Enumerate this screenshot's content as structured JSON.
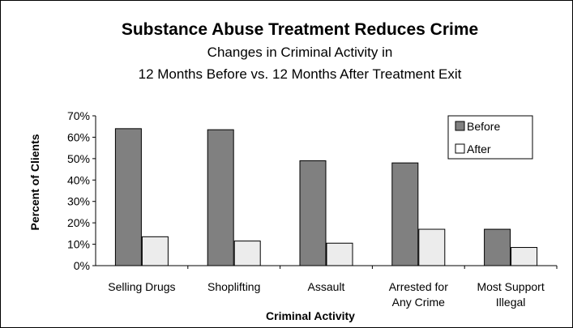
{
  "chart_data": {
    "type": "bar",
    "title": "Substance Abuse Treatment Reduces Crime",
    "subtitle_lines": [
      "Changes in Criminal Activity in",
      "12 Months Before vs. 12 Months After Treatment Exit"
    ],
    "xlabel": "Criminal Activity",
    "ylabel": "Percent of Clients",
    "ylim": [
      0,
      70
    ],
    "yticks": [
      "0%",
      "10%",
      "20%",
      "30%",
      "40%",
      "50%",
      "60%",
      "70%"
    ],
    "categories": [
      [
        "Selling Drugs"
      ],
      [
        "Shoplifting"
      ],
      [
        "Assault"
      ],
      [
        "Arrested for",
        "Any Crime"
      ],
      [
        "Most Support",
        "Illegal"
      ]
    ],
    "series": [
      {
        "name": "Before",
        "color": "#808080",
        "values": [
          64,
          63.5,
          49,
          48,
          17
        ]
      },
      {
        "name": "After",
        "color": "#f2f2f2",
        "values": [
          13.5,
          11.5,
          10.5,
          17,
          8.5
        ]
      }
    ],
    "legend_position": "top-right",
    "grid": false
  }
}
